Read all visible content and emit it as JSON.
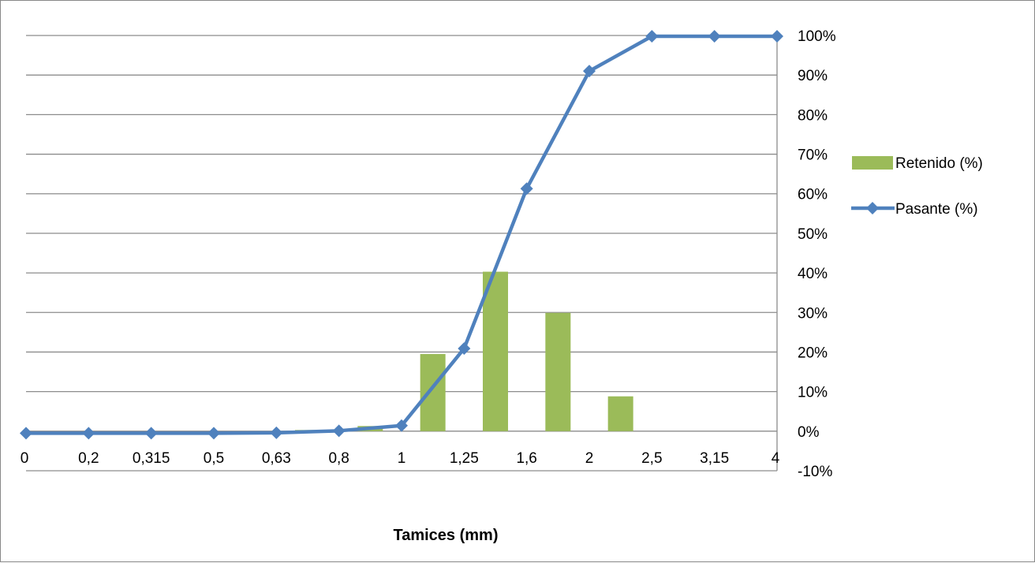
{
  "chart_data": {
    "type": "bar",
    "categories": [
      "0",
      "0,2",
      "0,315",
      "0,5",
      "0,63",
      "0,8",
      "1",
      "1,25",
      "1,6",
      "2",
      "2,5",
      "3,15",
      "4"
    ],
    "series": [
      {
        "name": "Retenido (%)",
        "type": "bar",
        "color": "#9BBB59",
        "values": [
          0,
          0,
          0,
          0,
          0.3,
          1.3,
          19.5,
          40.3,
          29.9,
          8.8,
          0,
          0,
          0
        ]
      },
      {
        "name": "Pasante (%)",
        "type": "line",
        "color": "#4F81BD",
        "marker": "diamond",
        "values": [
          -0.5,
          -0.5,
          -0.5,
          -0.5,
          -0.4,
          0.1,
          1.4,
          20.9,
          61.3,
          91.0,
          99.8,
          99.8,
          99.8
        ]
      }
    ],
    "xlabel": "Tamices (mm)",
    "ylabel": "",
    "ylim": [
      -10,
      100
    ],
    "yticks": [
      "-10%",
      "0%",
      "10%",
      "20%",
      "30%",
      "40%",
      "50%",
      "60%",
      "70%",
      "80%",
      "90%",
      "100%"
    ],
    "y_axis_side": "right",
    "grid": true,
    "legend_position": "right"
  }
}
